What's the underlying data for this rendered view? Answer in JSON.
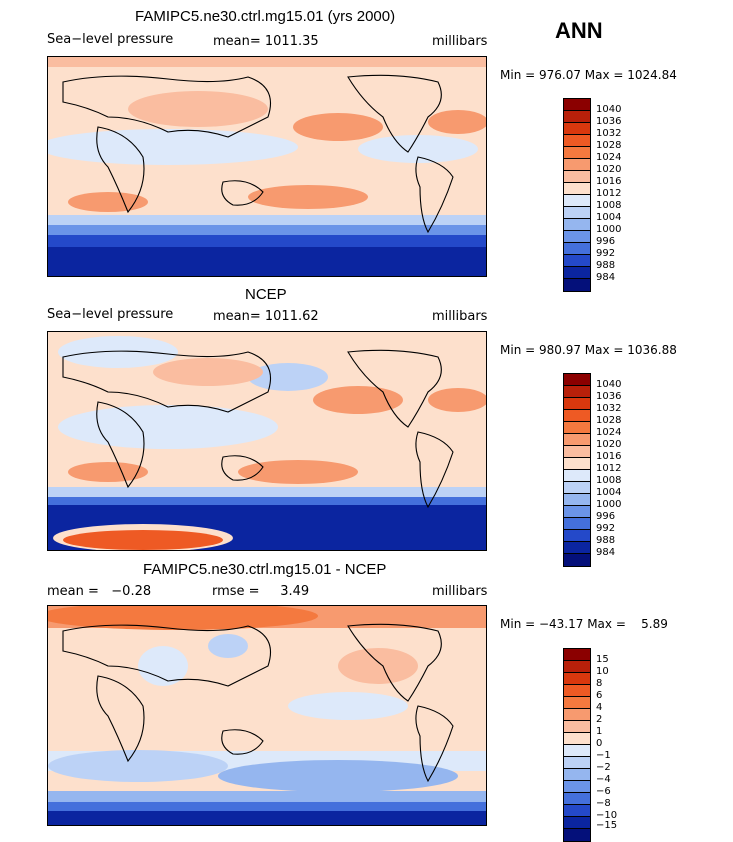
{
  "season": "ANN",
  "panels": [
    {
      "title": "FAMIPC5.ne30.ctrl.mg15.01 (yrs 2000)",
      "left_label": "Sea−level pressure",
      "mid_label": "mean= 1011.35",
      "units": "millibars",
      "minmax": "Min = 976.07 Max = 1024.84",
      "colorbar": [
        "1040",
        "1036",
        "1032",
        "1028",
        "1024",
        "1020",
        "1016",
        "1012",
        "1008",
        "1004",
        "1000",
        "996",
        "992",
        "988",
        "984"
      ]
    },
    {
      "title": "NCEP",
      "left_label": "Sea−level pressure",
      "mid_label": "mean= 1011.62",
      "units": "millibars",
      "minmax": "Min = 980.97 Max = 1036.88",
      "colorbar": [
        "1040",
        "1036",
        "1032",
        "1028",
        "1024",
        "1020",
        "1016",
        "1012",
        "1008",
        "1004",
        "1000",
        "996",
        "992",
        "988",
        "984"
      ]
    },
    {
      "title": "FAMIPC5.ne30.ctrl.mg15.01 - NCEP",
      "left_label": "mean =   −0.28",
      "mid_label": "rmse =     3.49",
      "units": "millibars",
      "minmax": "Min = −43.17 Max =    5.89",
      "colorbar": [
        "15",
        "10",
        "8",
        "6",
        "4",
        "2",
        "1",
        "0",
        "−1",
        "−2",
        "−4",
        "−6",
        "−8",
        "−10",
        "−15"
      ]
    }
  ],
  "colors": {
    "scale": [
      "#8b0000",
      "#b8200a",
      "#d9380e",
      "#ee5a24",
      "#f4793f",
      "#f79a6f",
      "#fabda0",
      "#fde0cc",
      "#dde9fa",
      "#bcd2f6",
      "#95b6ef",
      "#6b94e8",
      "#4470dc",
      "#2449c9",
      "#0b25a0",
      "#04107a"
    ]
  }
}
